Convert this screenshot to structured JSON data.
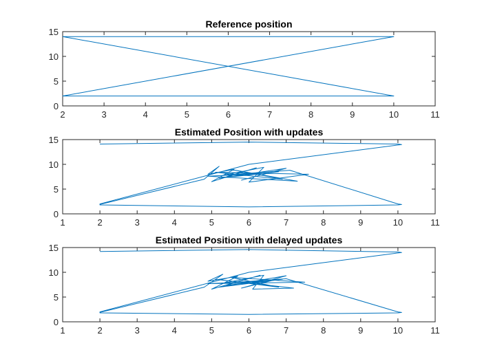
{
  "chart_data": [
    {
      "type": "line",
      "title": "Reference position",
      "xlabel": "",
      "ylabel": "",
      "xlim": [
        2,
        11
      ],
      "ylim": [
        0,
        15
      ],
      "xticks": [
        "2",
        "3",
        "4",
        "5",
        "6",
        "7",
        "8",
        "9",
        "10",
        "11"
      ],
      "yticks": [
        "0",
        "5",
        "10",
        "15"
      ],
      "grid": false,
      "color": "#0072BD",
      "series": [
        {
          "x": [
            2,
            10,
            2,
            10,
            2
          ],
          "y": [
            14,
            14,
            2,
            2,
            14
          ]
        }
      ]
    },
    {
      "type": "line",
      "title": "Estimated Position with updates",
      "xlabel": "",
      "ylabel": "",
      "xlim": [
        1,
        11
      ],
      "ylim": [
        0,
        15
      ],
      "xticks": [
        "1",
        "2",
        "3",
        "4",
        "5",
        "6",
        "7",
        "8",
        "9",
        "10",
        "11"
      ],
      "yticks": [
        "0",
        "5",
        "10",
        "15"
      ],
      "grid": false,
      "color": "#0072BD",
      "series": [
        {
          "x": [
            2.0,
            6.0,
            10.0,
            10.1,
            10.0,
            6.0,
            2.0,
            2.0,
            4.8,
            5.2,
            4.9,
            5.6,
            5.0,
            6.2,
            5.4,
            6.8,
            5.2,
            7.0,
            5.8,
            6.5,
            4.9,
            7.3,
            5.5,
            6.9,
            5.1,
            7.6,
            6.0,
            6.4,
            5.3,
            7.1,
            10.0,
            10.1,
            10.0,
            6.0,
            2.0,
            2.0
          ],
          "y": [
            14.1,
            14.5,
            14.1,
            14.0,
            13.9,
            10.0,
            2.0,
            1.9,
            7.0,
            9.6,
            8.0,
            9.0,
            6.5,
            9.3,
            7.5,
            8.5,
            7.2,
            9.2,
            6.8,
            8.2,
            7.6,
            6.6,
            9.0,
            7.0,
            8.4,
            8.0,
            6.4,
            9.4,
            7.8,
            8.8,
            2.0,
            1.9,
            1.8,
            1.4,
            1.8,
            2.0
          ]
        }
      ]
    },
    {
      "type": "line",
      "title": "Estimated Position with delayed updates",
      "xlabel": "",
      "ylabel": "",
      "xlim": [
        1,
        11
      ],
      "ylim": [
        0,
        15
      ],
      "xticks": [
        "1",
        "2",
        "3",
        "4",
        "5",
        "6",
        "7",
        "8",
        "9",
        "10",
        "11"
      ],
      "yticks": [
        "0",
        "5",
        "10",
        "15"
      ],
      "grid": false,
      "color": "#0072BD",
      "series": [
        {
          "x": [
            2.0,
            6.0,
            10.0,
            10.1,
            10.0,
            6.0,
            2.0,
            2.0,
            4.8,
            5.3,
            4.9,
            5.7,
            5.0,
            6.3,
            5.4,
            6.9,
            5.2,
            7.0,
            5.8,
            6.6,
            4.9,
            7.5,
            5.5,
            6.8,
            5.1,
            7.2,
            6.1,
            6.4,
            5.3,
            7.0,
            10.0,
            10.1,
            10.0,
            6.0,
            2.0,
            2.0
          ],
          "y": [
            14.2,
            14.6,
            14.1,
            14.0,
            13.9,
            10.0,
            2.0,
            1.9,
            7.0,
            9.6,
            8.2,
            9.2,
            6.6,
            9.4,
            7.4,
            8.6,
            7.0,
            9.3,
            6.8,
            8.3,
            7.7,
            8.0,
            9.0,
            7.0,
            8.6,
            6.8,
            6.6,
            9.4,
            7.8,
            8.7,
            2.0,
            1.9,
            1.8,
            1.5,
            1.8,
            2.0
          ]
        }
      ]
    }
  ]
}
